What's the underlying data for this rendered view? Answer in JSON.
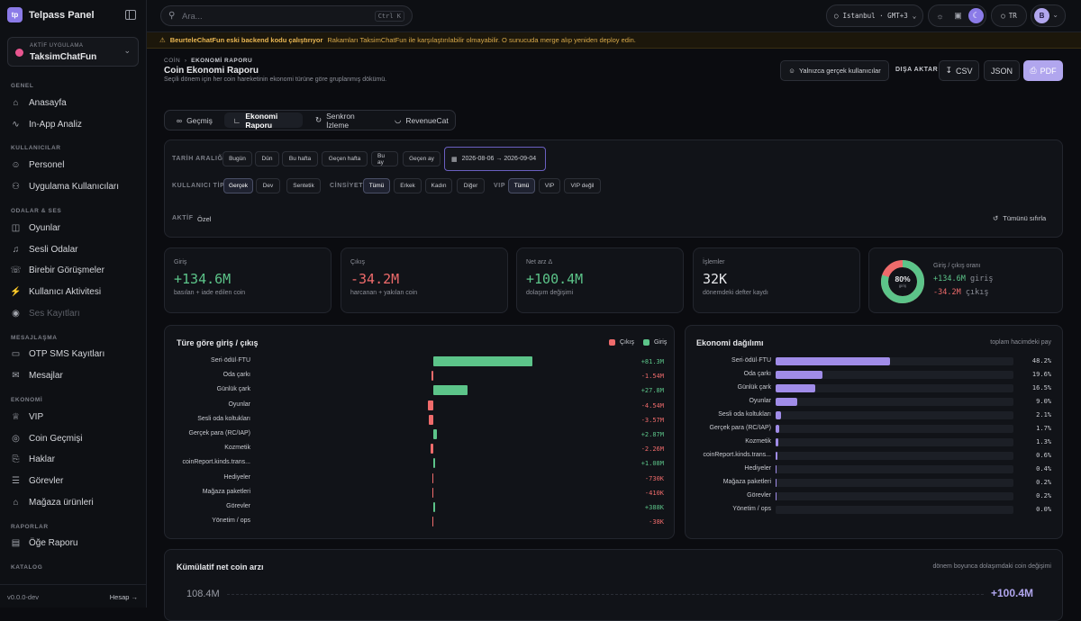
{
  "sidebar": {
    "brand_logo": "tp",
    "brand": "Telpass Panel",
    "app_label": "AKTİF UYGULAMA",
    "app_name": "TaksimChatFun",
    "sections": [
      {
        "title": "GENEL",
        "items": [
          {
            "label": "Anasayfa",
            "icon": "home-icon"
          },
          {
            "label": "In-App Analiz",
            "icon": "chart-line-icon"
          }
        ]
      },
      {
        "title": "KULLANICILAR",
        "items": [
          {
            "label": "Personel",
            "icon": "user-icon"
          },
          {
            "label": "Uygulama Kullanıcıları",
            "icon": "users-icon"
          }
        ]
      },
      {
        "title": "ODALAR & SES",
        "items": [
          {
            "label": "Oyunlar",
            "icon": "gamepad-icon"
          },
          {
            "label": "Sesli Odalar",
            "icon": "mic-icon"
          },
          {
            "label": "Birebir Görüşmeler",
            "icon": "phone-icon"
          },
          {
            "label": "Kullanıcı Aktivitesi",
            "icon": "activity-icon"
          },
          {
            "label": "Ses Kayıtları",
            "icon": "recording-icon",
            "disabled": true
          }
        ]
      },
      {
        "title": "MESAJLAŞMA",
        "items": [
          {
            "label": "OTP SMS Kayıtları",
            "icon": "sms-icon"
          },
          {
            "label": "Mesajlar",
            "icon": "message-icon"
          }
        ]
      },
      {
        "title": "EKONOMİ",
        "items": [
          {
            "label": "VIP",
            "icon": "crown-icon"
          },
          {
            "label": "Coin Geçmişi",
            "icon": "coin-icon"
          },
          {
            "label": "Haklar",
            "icon": "ticket-icon"
          },
          {
            "label": "Görevler",
            "icon": "checklist-icon"
          },
          {
            "label": "Mağaza ürünleri",
            "icon": "store-icon"
          }
        ]
      },
      {
        "title": "RAPORLAR",
        "items": [
          {
            "label": "Öğe Raporu",
            "icon": "report-icon"
          }
        ]
      },
      {
        "title": "KATALOG",
        "items": []
      }
    ],
    "version": "v0.0.0-dev",
    "account": "Hesap →"
  },
  "topbar": {
    "search_placeholder": "Ara...",
    "search_shortcut": "Ctrl K",
    "timezone": "Istanbul · GMT+3",
    "lang": "TR",
    "avatar": "B"
  },
  "warning": {
    "bold": "BeurteleChatFun eski backend kodu çalıştırıyor",
    "text": "Rakamları TaksimChatFun ile karşılaştırılabilir olmayabilir. O sunucuda merge alıp yeniden deploy edin."
  },
  "page": {
    "crumb_root": "COİN",
    "crumb_current": "EKONOMİ RAPORU",
    "title": "Coin Ekonomi Raporu",
    "subtitle": "Seçili dönem için her coin hareketinin ekonomi türüne göre gruplanmış dökümü.",
    "real_users": "Yalnızca gerçek kullanıcılar",
    "export_label": "DIŞA AKTAR",
    "csv": "CSV",
    "json": "JSON",
    "pdf": "PDF"
  },
  "tabs": [
    "Geçmiş",
    "Ekonomi Raporu",
    "Senkron İzleme",
    "RevenueCat"
  ],
  "filters": {
    "date_label": "TARİH ARALIĞI",
    "date_chips": [
      "Bugün",
      "Dün",
      "Bu hafta",
      "Geçen hafta",
      "Bu ay",
      "Geçen ay"
    ],
    "date_range": "2026-08-06 → 2026-09-04",
    "user_type_label": "KULLANICI TİPİ",
    "user_type_chips": [
      "Gerçek",
      "Dev",
      "Sentetik"
    ],
    "gender_label": "CİNSİYET",
    "gender_chips": [
      "Tümü",
      "Erkek",
      "Kadın",
      "Diğer"
    ],
    "vip_label": "VIP",
    "vip_chips": [
      "Tümü",
      "VIP",
      "VIP değil"
    ],
    "active_label": "AKTİF",
    "active_value": "Özel",
    "reset": "Tümünü sıfırla"
  },
  "kpis": [
    {
      "label": "Giriş",
      "value": "+134.6M",
      "sub": "basılan + iade edilen coin",
      "tone": "green"
    },
    {
      "label": "Çıkış",
      "value": "-34.2M",
      "sub": "harcanan + yakılan coin",
      "tone": "red"
    },
    {
      "label": "Net arz Δ",
      "value": "+100.4M",
      "sub": "dolaşım değişimi",
      "tone": "green"
    },
    {
      "label": "İşlemler",
      "value": "32K",
      "sub": "dönemdeki defter kaydı",
      "tone": "white"
    }
  ],
  "ratio": {
    "label": "Giriş / çıkış oranı",
    "percent": "80%",
    "sub": "giriş",
    "share": 0.8,
    "in_value": "+134.6M",
    "in_word": "giriş",
    "out_value": "-34.2M",
    "out_word": "çıkış"
  },
  "chart_data": [
    {
      "type": "bar",
      "title": "Türe göre giriş / çıkış",
      "legend": [
        "Çıkış",
        "Giriş"
      ],
      "colors": {
        "in": "#5cc489",
        "out": "#ef6b6b"
      },
      "categories": [
        "Seri·ödül·FTU",
        "Oda çarkı",
        "Günlük çark",
        "Oyunlar",
        "Sesli oda koltukları",
        "Gerçek para (RC/IAP)",
        "Kozmetik",
        "coinReport.kinds.trans...",
        "Hediyeler",
        "Mağaza paketleri",
        "Görevler",
        "Yönetim / ops"
      ],
      "values": [
        81.3,
        -1.54,
        27.8,
        -4.54,
        -3.57,
        2.87,
        -2.26,
        1.08,
        -0.73,
        -0.41,
        0.388,
        -0.038
      ],
      "labels": [
        "+81.3M",
        "-1.54M",
        "+27.8M",
        "-4.54M",
        "-3.57M",
        "+2.87M",
        "-2.26M",
        "+1.08M",
        "-730K",
        "-410K",
        "+388K",
        "-38K"
      ],
      "unit": "M"
    },
    {
      "type": "bar",
      "title": "Ekonomi dağılımı",
      "subtitle": "toplam hacimdeki pay",
      "categories": [
        "Seri·ödül·FTU",
        "Oda çarkı",
        "Günlük çark",
        "Oyunlar",
        "Sesli oda koltukları",
        "Gerçek para (RC/IAP)",
        "Kozmetik",
        "coinReport.kinds.trans...",
        "Hediyeler",
        "Mağaza paketleri",
        "Görevler",
        "Yönetim / ops"
      ],
      "values": [
        48.2,
        19.6,
        16.5,
        9.0,
        2.1,
        1.7,
        1.3,
        0.6,
        0.4,
        0.2,
        0.2,
        0.0
      ],
      "labels": [
        "48.2%",
        "19.6%",
        "16.5%",
        "9.0%",
        "2.1%",
        "1.7%",
        "1.3%",
        "0.6%",
        "0.4%",
        "0.2%",
        "0.2%",
        "0.0%"
      ]
    }
  ],
  "cumulative": {
    "title": "Kümülatif net coin arzı",
    "subtitle": "dönem boyunca dolaşımdaki coin değişimi",
    "y_top": "108.4M",
    "last": "+100.4M"
  }
}
